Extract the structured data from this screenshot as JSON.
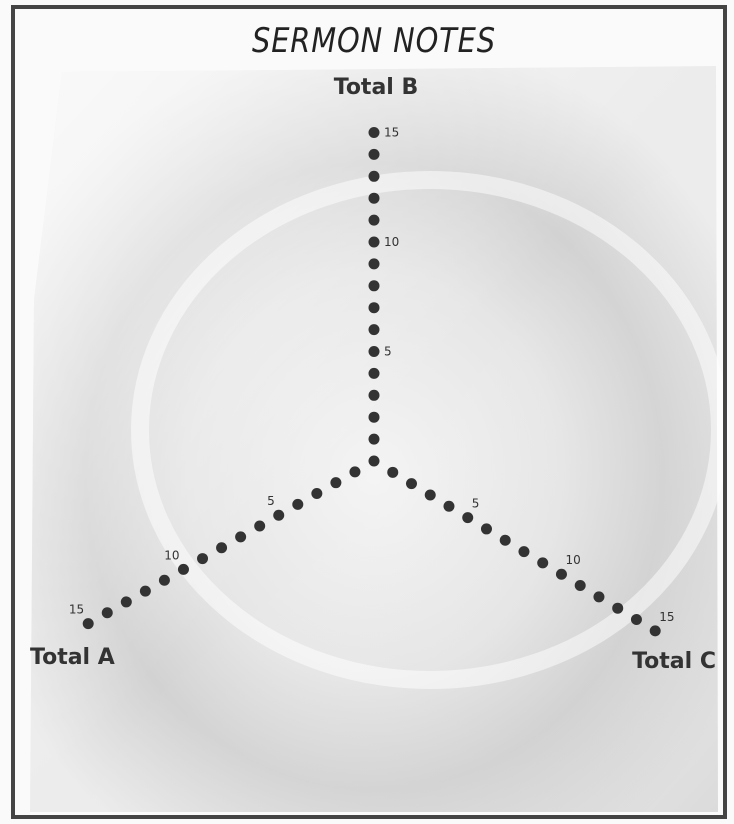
{
  "title": "SERMON NOTES",
  "axes": [
    {
      "label": "Total B",
      "ticks": [
        5,
        10,
        15
      ]
    },
    {
      "label": "Total A",
      "ticks": [
        5,
        10,
        15
      ]
    },
    {
      "label": "Total C",
      "ticks": [
        5,
        10,
        15
      ]
    }
  ]
}
